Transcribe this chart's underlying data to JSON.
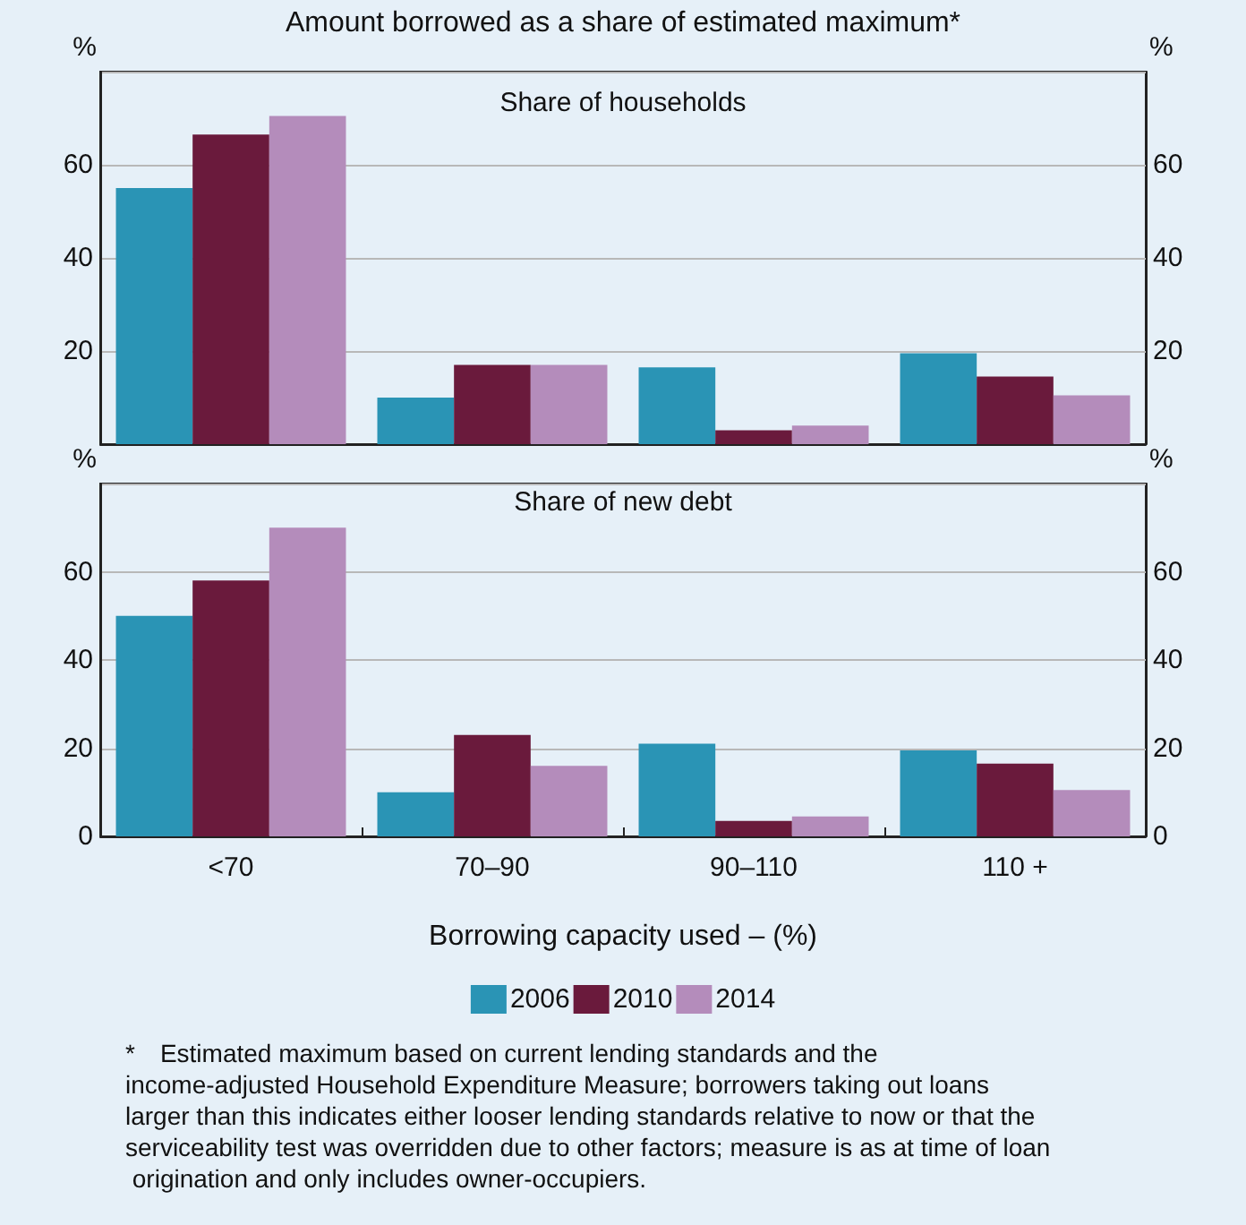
{
  "chart_data": [
    {
      "type": "bar",
      "title": "Amount borrowed as a share of estimated maximum*",
      "subtitle": "Share of households",
      "ylabel": "%",
      "y2label": "%",
      "categories": [
        null,
        null,
        null,
        null
      ],
      "series": [
        {
          "color": "#2a94b5",
          "values": [
            55,
            10,
            16.5,
            19.5
          ]
        },
        {
          "color": "#6a1a3c",
          "values": [
            66.5,
            17,
            3,
            14.5
          ]
        },
        {
          "color": "#b48cbb",
          "values": [
            70.5,
            17,
            4,
            10.5
          ]
        }
      ],
      "ylim": [
        0,
        80
      ],
      "yticks": [
        20,
        40,
        60
      ],
      "y2lim": [
        0,
        80
      ],
      "y2ticks": [
        20,
        40,
        60
      ],
      "grid": "y",
      "tick_labels": "y",
      "legend": false
    },
    {
      "type": "bar",
      "subtitle": "Share of new debt",
      "xlabel": "Borrowing capacity used – (%)",
      "ylabel": "%",
      "y2label": "%",
      "categories": [
        "<70",
        "70–90",
        "90–110",
        "110 +"
      ],
      "series": [
        {
          "name": "2006",
          "color": "#2a94b5",
          "values": [
            50,
            10,
            21,
            19.5
          ]
        },
        {
          "name": "2010",
          "color": "#6a1a3c",
          "values": [
            58,
            23,
            3.5,
            16.5
          ]
        },
        {
          "name": "2014",
          "color": "#b48cbb",
          "values": [
            70,
            16,
            4.5,
            10.5
          ]
        }
      ],
      "ylim": [
        0,
        80
      ],
      "yticks": [
        0,
        20,
        40,
        60
      ],
      "y2lim": [
        0,
        80
      ],
      "y2ticks": [
        0,
        20,
        40,
        60
      ],
      "grid": "y",
      "legend": "bottom",
      "annotations": [
        "* Estimated maximum based on current lending standards and the income-adjusted Household Expenditure Measure; borrowers taking out loans larger than this indicates either looser lending standards relative to now or that the serviceability test was overridden due to other factors; measure is as at time of loan origination and only includes owner-occupiers."
      ]
    }
  ]
}
